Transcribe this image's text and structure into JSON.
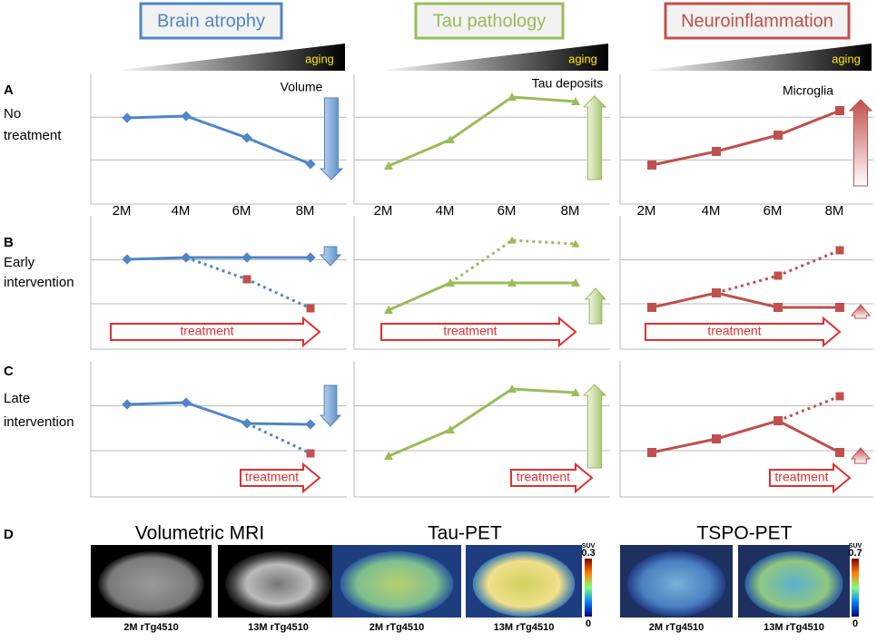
{
  "headers": [
    "Brain atrophy",
    "Tau pathology",
    "Neuroinflammation"
  ],
  "aging": "aging",
  "rows": [
    {
      "letter": "A",
      "label": [
        "No",
        "treatment"
      ]
    },
    {
      "letter": "B",
      "label": [
        "Early",
        "intervention"
      ]
    },
    {
      "letter": "C",
      "label": [
        "Late",
        "intervention"
      ]
    }
  ],
  "annotations": [
    "Volume",
    "Tau deposits",
    "Microglia"
  ],
  "x_labels": [
    "2M",
    "4M",
    "6M",
    "8M"
  ],
  "treatment": "treatment",
  "imaging": {
    "letter": "D",
    "panels": [
      {
        "title": "Volumetric MRI",
        "captions": [
          "2M rTg4510",
          "13M rTg4510"
        ]
      },
      {
        "title": "Tau-PET",
        "captions": [
          "2M rTg4510",
          "13M rTg4510"
        ],
        "scale": {
          "unit": "SUV",
          "max": "0.3",
          "min": "0"
        }
      },
      {
        "title": "TSPO-PET",
        "captions": [
          "2M rTg4510",
          "13M rTg4510"
        ],
        "scale": {
          "unit": "SUV",
          "max": "0.7",
          "min": "0"
        }
      }
    ]
  }
}
